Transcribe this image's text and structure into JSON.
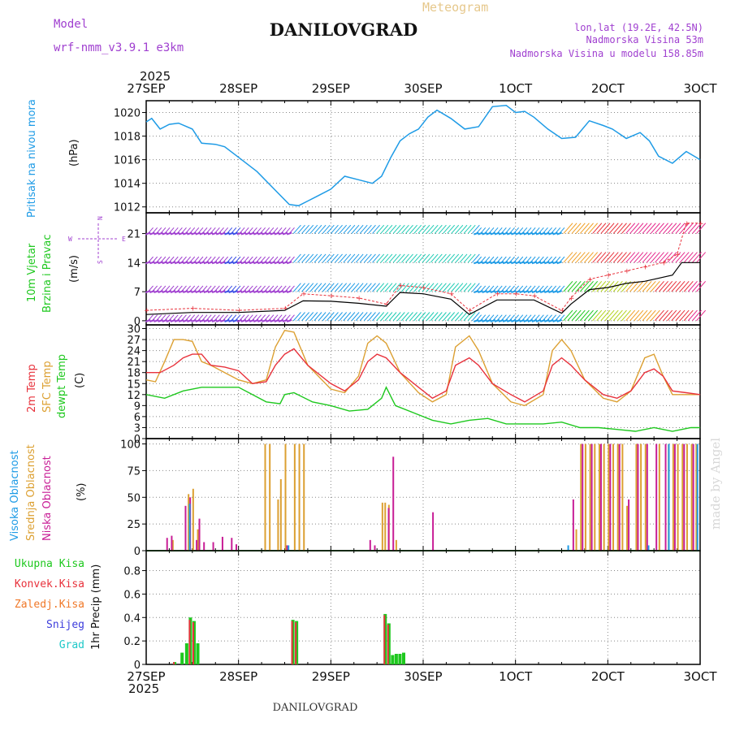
{
  "header": {
    "app_title": "Meteogram",
    "station": "DANILOVGRAD",
    "model_label": "Model",
    "model_name": "wrf-nmm_v3.9.1 e3km",
    "location": "lon,lat (19.2E, 42.5N)",
    "elevation": "Nadmorska Visina 53m",
    "model_elevation": "Nadmorska Visina u modelu 158.85m",
    "year_top": "2025",
    "year_bottom": "2025",
    "footer_station": "DANILOVGRAD",
    "credit": "made by Angel"
  },
  "time_axis": [
    "27SEP",
    "28SEP",
    "29SEP",
    "30SEP",
    "1OCT",
    "2OCT",
    "3OCT"
  ],
  "colors": {
    "pressure": "#1e9be6",
    "temp2m": "#e8323c",
    "sfc": "#dca032",
    "dew": "#1ec81e",
    "high": "#1e9be6",
    "mid": "#dca032",
    "low": "#c81e96",
    "wind_label": "#1ec81e",
    "model": "#a040d0",
    "header_gold": "#e6c88c"
  },
  "chart_data": [
    {
      "type": "line",
      "panel": "pressure",
      "ylabel_main": "Pritisak na nivou mora",
      "ylabel_unit": "(hPa)",
      "ylim": [
        1011.5,
        1021
      ],
      "yticks": [
        1012,
        1014,
        1016,
        1018,
        1020
      ],
      "xlim": [
        0,
        6
      ],
      "series": [
        {
          "name": "Pritisak na nivou mora",
          "x": [
            0,
            0.06,
            0.15,
            0.25,
            0.35,
            0.5,
            0.6,
            0.75,
            0.85,
            1.0,
            1.2,
            1.4,
            1.55,
            1.65,
            1.75,
            1.85,
            2.0,
            2.15,
            2.3,
            2.45,
            2.55,
            2.65,
            2.75,
            2.85,
            2.95,
            3.05,
            3.15,
            3.3,
            3.45,
            3.6,
            3.75,
            3.9,
            4.0,
            4.1,
            4.2,
            4.35,
            4.5,
            4.65,
            4.8,
            4.95,
            5.05,
            5.2,
            5.35,
            5.45,
            5.55,
            5.7,
            5.85,
            6.0
          ],
          "values": [
            1019.2,
            1019.5,
            1018.6,
            1019.0,
            1019.1,
            1018.6,
            1017.4,
            1017.3,
            1017.1,
            1016.2,
            1015.0,
            1013.4,
            1012.2,
            1012.1,
            1012.5,
            1012.9,
            1013.5,
            1014.6,
            1014.3,
            1014.0,
            1014.6,
            1016.2,
            1017.6,
            1018.2,
            1018.6,
            1019.6,
            1020.2,
            1019.5,
            1018.6,
            1018.8,
            1020.5,
            1020.6,
            1020.0,
            1020.1,
            1019.6,
            1018.6,
            1017.8,
            1017.9,
            1019.3,
            1018.9,
            1018.6,
            1017.8,
            1018.3,
            1017.6,
            1016.3,
            1015.7,
            1016.7,
            1016.0
          ]
        }
      ]
    },
    {
      "type": "line",
      "panel": "wind",
      "ylabel_main": "10m Vjetar",
      "ylabel_sub": "Brzina i Pravac",
      "ylabel_unit": "(m/s)",
      "compass": {
        "n": "N",
        "s": "S",
        "w": "W",
        "e": "E"
      },
      "ylim": [
        -1,
        26
      ],
      "yticks": [
        0,
        7,
        14,
        21
      ],
      "xlim": [
        0,
        6
      ],
      "series": [
        {
          "name": "speed",
          "x": [
            0,
            0.5,
            1.0,
            1.5,
            1.7,
            2.0,
            2.3,
            2.6,
            2.75,
            3.0,
            3.3,
            3.5,
            3.8,
            4.0,
            4.2,
            4.5,
            4.6,
            4.8,
            5.0,
            5.2,
            5.4,
            5.5,
            5.7,
            5.8,
            6.0
          ],
          "values": [
            1.5,
            2.0,
            2.0,
            2.5,
            4.8,
            4.7,
            4.2,
            3.5,
            6.8,
            6.5,
            5.2,
            1.5,
            5.0,
            5.0,
            5.0,
            1.8,
            4.0,
            7.5,
            8.0,
            9.0,
            9.5,
            10.0,
            11.0,
            14.0,
            14.0
          ]
        },
        {
          "name": "gust",
          "x": [
            0,
            0.5,
            1.0,
            1.5,
            1.7,
            2.0,
            2.3,
            2.6,
            2.75,
            3.0,
            3.3,
            3.5,
            3.8,
            4.0,
            4.2,
            4.5,
            4.6,
            4.8,
            5.0,
            5.2,
            5.4,
            5.6,
            5.75,
            5.85,
            6.0
          ],
          "values": [
            2.5,
            3.0,
            2.5,
            3.0,
            6.5,
            6.0,
            5.5,
            4.0,
            8.5,
            8.0,
            6.5,
            2.5,
            6.5,
            6.5,
            6.0,
            2.5,
            5.5,
            10.0,
            11.0,
            12.0,
            13.0,
            14.0,
            16.0,
            23.5,
            23.5
          ]
        }
      ],
      "barb_rows": [
        0,
        7,
        14,
        21
      ]
    },
    {
      "type": "line",
      "panel": "temperature",
      "ylabels": [
        "2m Temp",
        "SFC Temp",
        "dewpt Temp"
      ],
      "ylabel_unit": "(C)",
      "ylim": [
        0,
        31
      ],
      "yticks": [
        0,
        3,
        6,
        9,
        12,
        15,
        18,
        21,
        24,
        27,
        30
      ],
      "xlim": [
        0,
        6
      ],
      "series": [
        {
          "name": "2m Temp",
          "x": [
            0,
            0.15,
            0.3,
            0.4,
            0.5,
            0.6,
            0.7,
            0.85,
            1.0,
            1.15,
            1.3,
            1.4,
            1.5,
            1.6,
            1.75,
            2.0,
            2.15,
            2.3,
            2.4,
            2.5,
            2.6,
            2.75,
            2.95,
            3.1,
            3.25,
            3.35,
            3.5,
            3.6,
            3.75,
            3.95,
            4.1,
            4.3,
            4.4,
            4.5,
            4.6,
            4.75,
            4.95,
            5.1,
            5.25,
            5.4,
            5.5,
            5.6,
            5.7,
            5.85,
            6.0
          ],
          "values": [
            18,
            18,
            20,
            22,
            23,
            23,
            20,
            19.5,
            18.5,
            15,
            15.5,
            20,
            23,
            24.5,
            20,
            15,
            13,
            16,
            21,
            23,
            22,
            18,
            14,
            11,
            13,
            20,
            22,
            20,
            15,
            12,
            10,
            13,
            20,
            22,
            20,
            16,
            12,
            11,
            13,
            18,
            19,
            17,
            13,
            12.5,
            12
          ]
        },
        {
          "name": "SFC Temp",
          "x": [
            0,
            0.1,
            0.2,
            0.3,
            0.4,
            0.5,
            0.6,
            0.7,
            0.85,
            1.0,
            1.15,
            1.3,
            1.4,
            1.5,
            1.6,
            1.75,
            2.0,
            2.15,
            2.3,
            2.4,
            2.5,
            2.6,
            2.75,
            2.95,
            3.1,
            3.25,
            3.35,
            3.5,
            3.6,
            3.75,
            3.95,
            4.1,
            4.3,
            4.4,
            4.5,
            4.6,
            4.75,
            4.95,
            5.1,
            5.25,
            5.4,
            5.5,
            5.6,
            5.7,
            5.85,
            6.0
          ],
          "values": [
            16,
            15.5,
            21,
            27,
            27,
            26.5,
            21,
            20,
            18,
            16,
            15,
            16,
            25,
            29.5,
            29,
            20,
            13.5,
            12.5,
            17,
            26,
            28,
            26,
            18,
            12.5,
            10,
            12,
            25,
            28,
            24,
            15,
            10,
            9,
            12,
            24,
            27,
            24,
            16,
            11,
            10,
            13,
            22,
            23,
            17,
            12,
            12,
            12
          ]
        },
        {
          "name": "dewpt Temp",
          "x": [
            0,
            0.2,
            0.4,
            0.6,
            0.8,
            1.0,
            1.15,
            1.3,
            1.45,
            1.5,
            1.6,
            1.8,
            2.0,
            2.2,
            2.4,
            2.55,
            2.6,
            2.7,
            2.9,
            3.1,
            3.3,
            3.5,
            3.7,
            3.9,
            4.1,
            4.3,
            4.5,
            4.7,
            4.9,
            5.1,
            5.3,
            5.5,
            5.7,
            5.9,
            6.0
          ],
          "values": [
            12,
            11,
            13,
            14,
            14,
            14,
            12,
            10,
            9.5,
            12,
            12.5,
            10,
            9,
            7.5,
            8,
            11,
            14,
            9,
            7,
            5,
            4,
            5,
            5.5,
            4,
            4,
            4,
            4.5,
            3,
            3,
            2.5,
            2,
            3,
            2,
            3,
            3
          ]
        }
      ]
    },
    {
      "type": "bar",
      "panel": "cloud",
      "ylabels": [
        "Visoka Oblacnost",
        "Srednja Oblacnost",
        "Niska Oblacnost"
      ],
      "ylabel_unit": "(%)",
      "ylim": [
        0,
        105
      ],
      "yticks": [
        0,
        25,
        50,
        75,
        100
      ],
      "xlim": [
        0,
        6
      ],
      "series": [
        {
          "name": "Srednja Oblacnost",
          "x": [
            0.28,
            0.45,
            0.5,
            0.55,
            1.28,
            1.33,
            1.42,
            1.45,
            1.5,
            1.6,
            1.65,
            1.7,
            2.55,
            2.58,
            2.62,
            2.7,
            4.65,
            4.7,
            4.75,
            4.8,
            4.85,
            4.9,
            4.95,
            5.0,
            5.05,
            5.1,
            5.15,
            5.2,
            5.3,
            5.35,
            5.4,
            5.55,
            5.65,
            5.7,
            5.75,
            5.8,
            5.85,
            5.9,
            5.95
          ],
          "values": [
            10,
            53,
            58,
            20,
            100,
            100,
            48,
            67,
            100,
            100,
            100,
            100,
            45,
            45,
            43,
            10,
            20,
            100,
            100,
            100,
            100,
            100,
            100,
            100,
            100,
            100,
            100,
            42,
            100,
            100,
            100,
            100,
            100,
            100,
            100,
            100,
            100,
            100,
            100
          ]
        },
        {
          "name": "Niska Oblacnost",
          "x": [
            0.2,
            0.25,
            0.4,
            0.45,
            0.52,
            0.55,
            0.6,
            0.7,
            0.8,
            0.9,
            0.95,
            1.5,
            2.4,
            2.45,
            2.6,
            2.65,
            3.08,
            4.6,
            4.7,
            4.8,
            4.9,
            5.0,
            5.1,
            5.2,
            5.3,
            5.4,
            5.5,
            5.6,
            5.7,
            5.8,
            5.9
          ],
          "values": [
            12,
            14,
            42,
            50,
            10,
            30,
            8,
            8,
            13,
            12,
            6,
            5,
            10,
            5,
            40,
            88,
            36,
            48,
            100,
            100,
            100,
            100,
            100,
            48,
            100,
            100,
            100,
            100,
            100,
            100,
            100
          ]
        },
        {
          "name": "Visoka Oblacnost",
          "x": [
            0.48,
            1.55,
            4.58,
            5.45,
            5.67,
            5.98
          ],
          "values": [
            44,
            5,
            5,
            5,
            100,
            100
          ]
        }
      ]
    },
    {
      "type": "bar",
      "panel": "precip",
      "ylabels": [
        "Ukupna Kisa",
        "Konvek.Kisa",
        "Zaledj.Kisa",
        "Snijeg",
        "Grad"
      ],
      "ylabel_unit": "1hr Precip (mm)",
      "ylim": [
        0,
        0.97
      ],
      "yticks": [
        0,
        0.2,
        0.4,
        0.6,
        0.8
      ],
      "ytick_labels": [
        "0",
        "0.2",
        "0.4",
        "0.6",
        "0.8"
      ],
      "xlim": [
        0,
        6
      ],
      "series": [
        {
          "name": "Ukupna Kisa",
          "x": [
            0.3,
            0.38,
            0.43,
            0.47,
            0.51,
            0.55,
            1.58,
            1.62,
            2.58,
            2.62,
            2.66,
            2.7,
            2.74,
            2.78
          ],
          "values": [
            0.02,
            0.1,
            0.18,
            0.4,
            0.37,
            0.18,
            0.38,
            0.37,
            0.43,
            0.35,
            0.08,
            0.09,
            0.09,
            0.1
          ]
        },
        {
          "name": "Konvek.Kisa",
          "x": [
            0.3,
            0.47,
            0.51,
            1.58,
            1.62,
            2.58,
            2.62
          ],
          "values": [
            0.02,
            0.38,
            0.36,
            0.37,
            0.36,
            0.42,
            0.34
          ]
        }
      ]
    }
  ]
}
